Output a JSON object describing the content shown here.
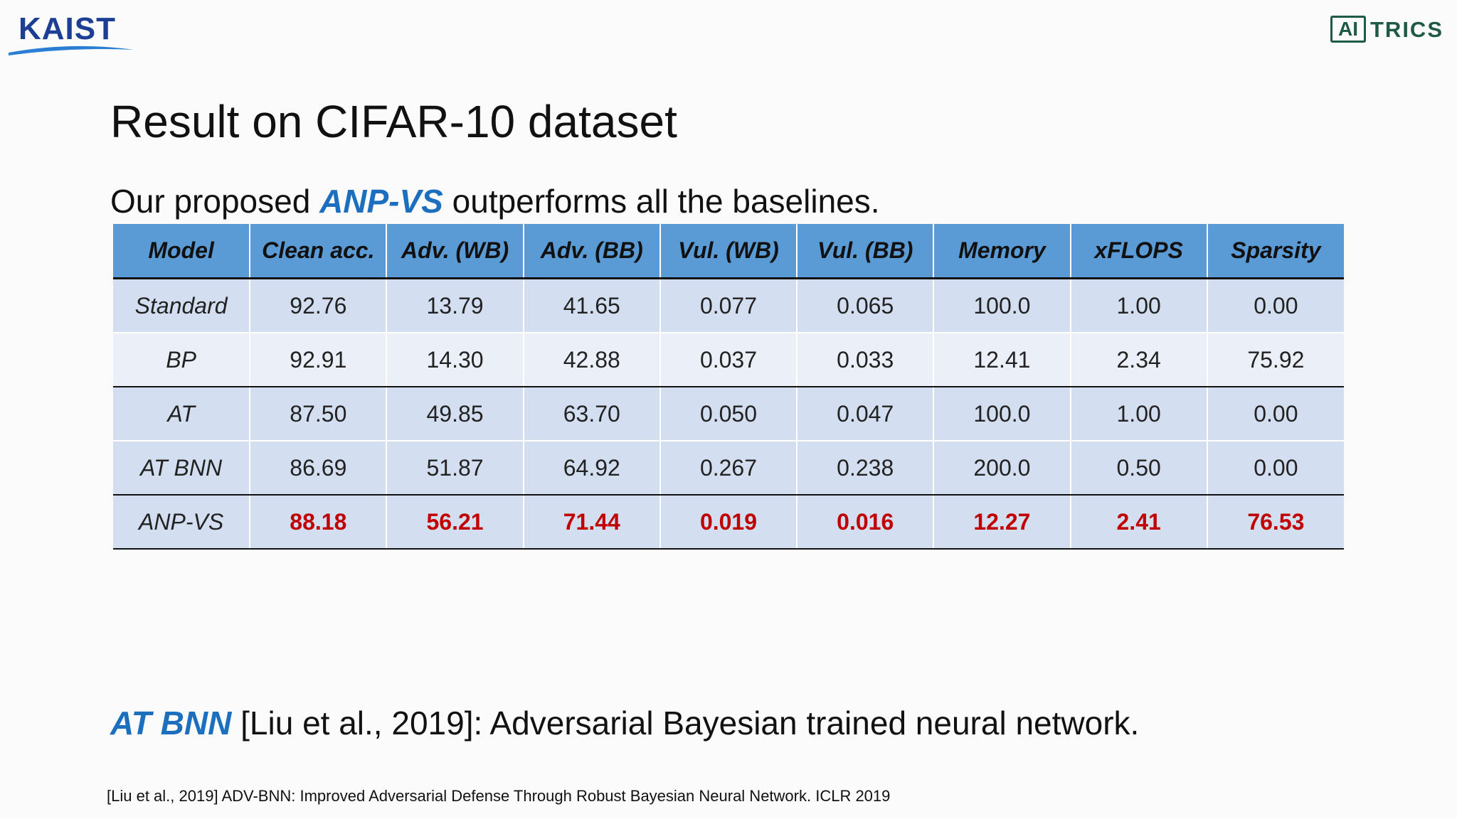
{
  "logos": {
    "left": "KAIST",
    "right_box": "AI",
    "right_text": "TRICS"
  },
  "title": "Result on CIFAR-10 dataset",
  "subtitle": {
    "prefix": "Our proposed ",
    "highlight": "ANP-VS",
    "suffix": " outperforms all the baselines."
  },
  "table": {
    "headers": [
      "Model",
      "Clean acc.",
      "Adv.  (WB)",
      "Adv.  (BB)",
      "Vul. (WB)",
      "Vul. (BB)",
      "Memory",
      "xFLOPS",
      "Sparsity"
    ],
    "rows": [
      [
        "Standard",
        "92.76",
        "13.79",
        "41.65",
        "0.077",
        "0.065",
        "100.0",
        "1.00",
        "0.00"
      ],
      [
        "BP",
        "92.91",
        "14.30",
        "42.88",
        "0.037",
        "0.033",
        "12.41",
        "2.34",
        "75.92"
      ],
      [
        "AT",
        "87.50",
        "49.85",
        "63.70",
        "0.050",
        "0.047",
        "100.0",
        "1.00",
        "0.00"
      ],
      [
        "AT BNN",
        "86.69",
        "51.87",
        "64.92",
        "0.267",
        "0.238",
        "200.0",
        "0.50",
        "0.00"
      ],
      [
        "ANP-VS",
        "88.18",
        "56.21",
        "71.44",
        "0.019",
        "0.016",
        "12.27",
        "2.41",
        "76.53"
      ]
    ]
  },
  "note": {
    "highlight": "AT BNN",
    "text": " [Liu et al., 2019]: Adversarial Bayesian trained neural network."
  },
  "reference": "[Liu et al., 2019] ADV-BNN: Improved Adversarial Defense Through Robust Bayesian Neural Network. ICLR 2019",
  "colors": {
    "header_bg": "#5b9bd5",
    "row_dark": "#d3dff0",
    "row_light": "#eaeff8",
    "highlight_blue": "#1c6fbf",
    "best_red": "#c00000"
  }
}
